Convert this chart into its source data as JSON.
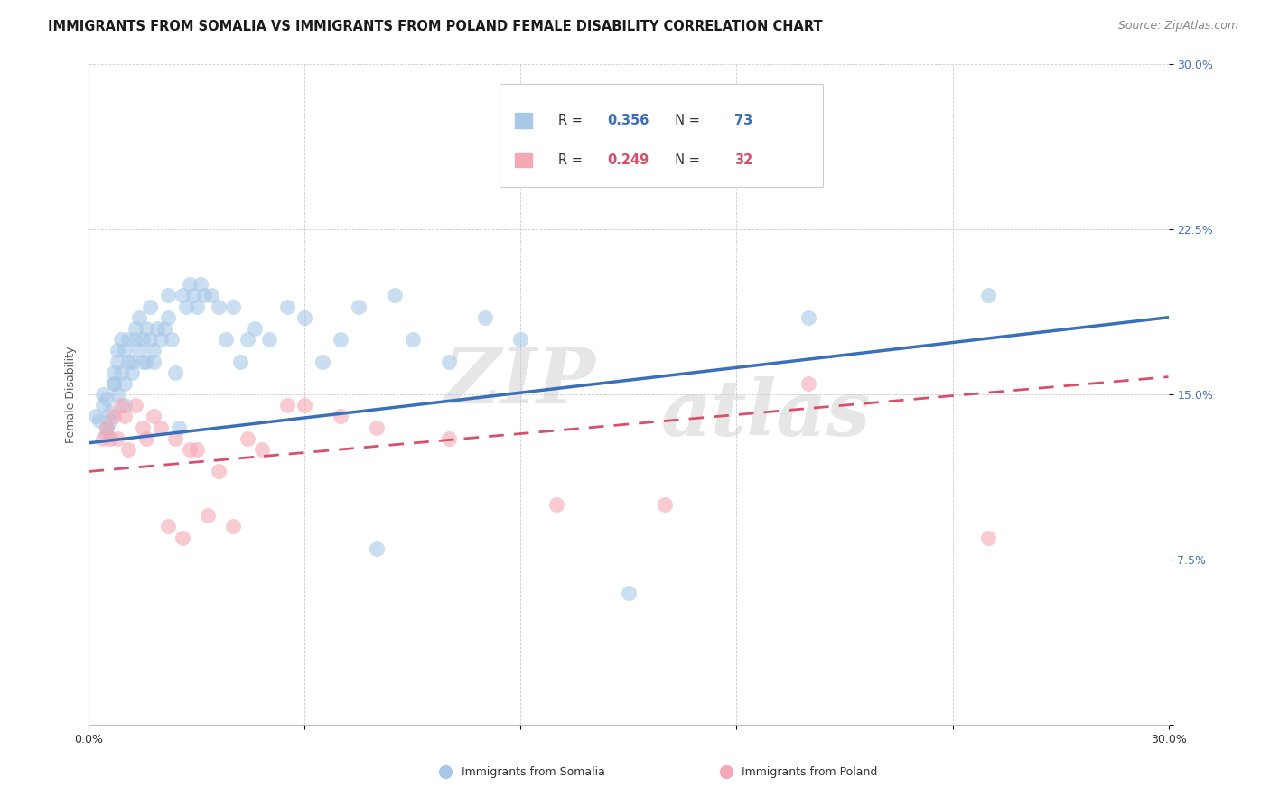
{
  "title": "IMMIGRANTS FROM SOMALIA VS IMMIGRANTS FROM POLAND FEMALE DISABILITY CORRELATION CHART",
  "source": "Source: ZipAtlas.com",
  "ylabel": "Female Disability",
  "xlim": [
    0.0,
    0.3
  ],
  "ylim": [
    0.0,
    0.3
  ],
  "somalia_R": 0.356,
  "somalia_N": 73,
  "poland_R": 0.249,
  "poland_N": 32,
  "somalia_color": "#a8c8e8",
  "poland_color": "#f4a7b4",
  "somalia_line_color": "#3a6fbc",
  "poland_line_color": "#d94f6a",
  "somalia_points_x": [
    0.002,
    0.003,
    0.004,
    0.004,
    0.005,
    0.005,
    0.005,
    0.006,
    0.006,
    0.007,
    0.007,
    0.007,
    0.008,
    0.008,
    0.008,
    0.009,
    0.009,
    0.01,
    0.01,
    0.01,
    0.011,
    0.011,
    0.012,
    0.012,
    0.013,
    0.013,
    0.014,
    0.014,
    0.015,
    0.015,
    0.016,
    0.016,
    0.017,
    0.017,
    0.018,
    0.018,
    0.019,
    0.02,
    0.021,
    0.022,
    0.022,
    0.023,
    0.024,
    0.025,
    0.026,
    0.027,
    0.028,
    0.029,
    0.03,
    0.031,
    0.032,
    0.034,
    0.036,
    0.038,
    0.04,
    0.042,
    0.044,
    0.046,
    0.05,
    0.055,
    0.06,
    0.065,
    0.07,
    0.075,
    0.08,
    0.085,
    0.09,
    0.1,
    0.11,
    0.12,
    0.15,
    0.2,
    0.25
  ],
  "somalia_points_y": [
    0.14,
    0.138,
    0.145,
    0.15,
    0.132,
    0.148,
    0.135,
    0.142,
    0.138,
    0.155,
    0.16,
    0.155,
    0.165,
    0.15,
    0.17,
    0.16,
    0.175,
    0.145,
    0.155,
    0.17,
    0.165,
    0.175,
    0.16,
    0.165,
    0.175,
    0.18,
    0.17,
    0.185,
    0.165,
    0.175,
    0.165,
    0.18,
    0.175,
    0.19,
    0.17,
    0.165,
    0.18,
    0.175,
    0.18,
    0.195,
    0.185,
    0.175,
    0.16,
    0.135,
    0.195,
    0.19,
    0.2,
    0.195,
    0.19,
    0.2,
    0.195,
    0.195,
    0.19,
    0.175,
    0.19,
    0.165,
    0.175,
    0.18,
    0.175,
    0.19,
    0.185,
    0.165,
    0.175,
    0.19,
    0.08,
    0.195,
    0.175,
    0.165,
    0.185,
    0.175,
    0.06,
    0.185,
    0.195
  ],
  "poland_points_x": [
    0.004,
    0.005,
    0.006,
    0.007,
    0.008,
    0.009,
    0.01,
    0.011,
    0.013,
    0.015,
    0.016,
    0.018,
    0.02,
    0.022,
    0.024,
    0.026,
    0.028,
    0.03,
    0.033,
    0.036,
    0.04,
    0.044,
    0.048,
    0.055,
    0.06,
    0.07,
    0.08,
    0.1,
    0.13,
    0.16,
    0.2,
    0.25
  ],
  "poland_points_y": [
    0.13,
    0.135,
    0.13,
    0.14,
    0.13,
    0.145,
    0.14,
    0.125,
    0.145,
    0.135,
    0.13,
    0.14,
    0.135,
    0.09,
    0.13,
    0.085,
    0.125,
    0.125,
    0.095,
    0.115,
    0.09,
    0.13,
    0.125,
    0.145,
    0.145,
    0.14,
    0.135,
    0.13,
    0.1,
    0.1,
    0.155,
    0.085
  ],
  "somalia_line_x": [
    0.0,
    0.3
  ],
  "somalia_line_y": [
    0.128,
    0.185
  ],
  "poland_line_x": [
    0.0,
    0.3
  ],
  "poland_line_y": [
    0.115,
    0.158
  ],
  "watermark_line1": "ZIP",
  "watermark_line2": "atlas",
  "y_ticks": [
    0.0,
    0.075,
    0.15,
    0.225,
    0.3
  ],
  "y_tick_labels": [
    "",
    "7.5%",
    "15.0%",
    "22.5%",
    "30.0%"
  ],
  "x_ticks": [
    0.0,
    0.06,
    0.12,
    0.18,
    0.24,
    0.3
  ],
  "x_tick_labels": [
    "0.0%",
    "",
    "",
    "",
    "",
    "30.0%"
  ],
  "tick_color": "#4472c4",
  "title_fontsize": 10.5,
  "axis_label_fontsize": 9,
  "tick_fontsize": 9,
  "source_fontsize": 9
}
